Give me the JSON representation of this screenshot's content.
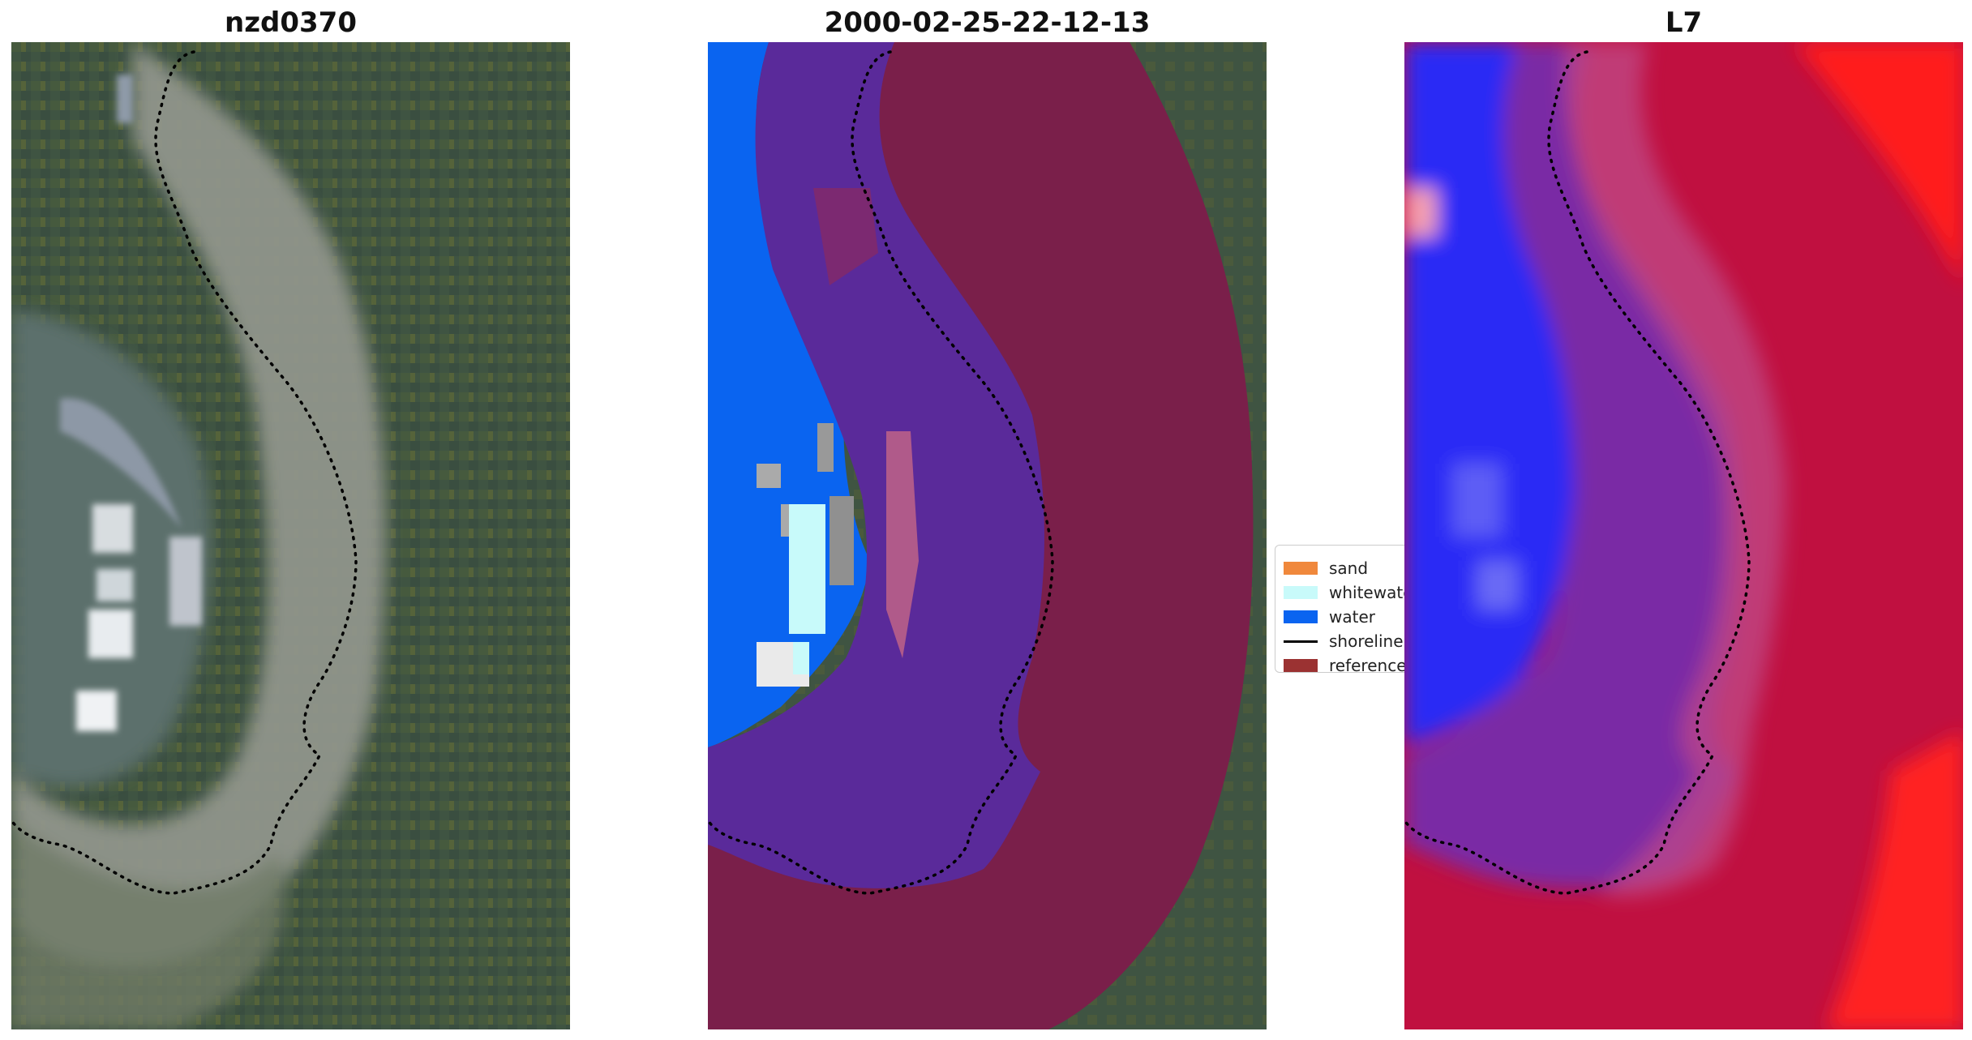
{
  "figure": {
    "panels": [
      {
        "title": "nzd0370",
        "kind": "rgb-image"
      },
      {
        "title": "2000-02-25-22-12-13",
        "kind": "classified-overlay"
      },
      {
        "title": "L7",
        "kind": "index-colormap"
      }
    ],
    "legend": {
      "items": [
        {
          "label": "sand",
          "type": "patch",
          "color": "#f0883c"
        },
        {
          "label": "whitewater",
          "type": "patch",
          "color": "#c8fafa"
        },
        {
          "label": "water",
          "type": "patch",
          "color": "#0a64f0"
        },
        {
          "label": "shoreline",
          "type": "line",
          "color": "#000000"
        },
        {
          "label": "reference",
          "type": "patch",
          "color": "#9b3232"
        }
      ]
    },
    "colors": {
      "vegetation": "#3e5340",
      "vegetation_light": "#5c6a3a",
      "sand_gray": "#9a9a8e",
      "shallow_reef": "#7a8a88",
      "classified_water": "#0a64f0",
      "classified_overlay_purple": "#5a2a9a",
      "reference_overlay": "#7a1f4a",
      "index_blue": "#2a2af5",
      "index_purple": "#7a2aa5",
      "index_red": "#c01040",
      "index_bright_red": "#ff1a1a"
    }
  }
}
